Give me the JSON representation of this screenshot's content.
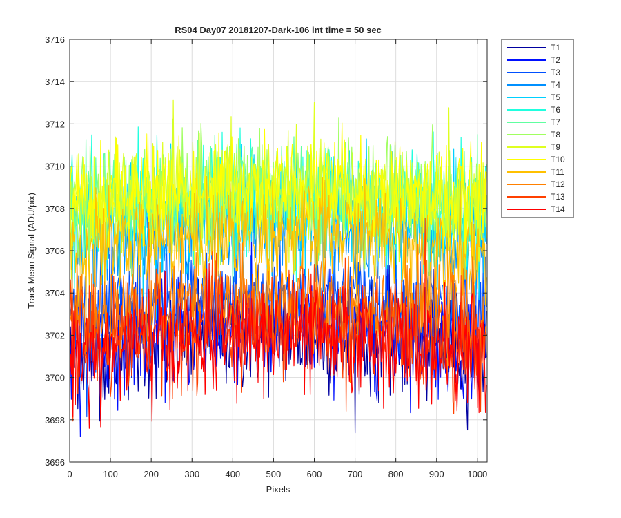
{
  "chart_data": {
    "type": "line",
    "title": "RS04 Day07 20181207-Dark-106 int time = 50 sec",
    "xlabel": "Pixels",
    "ylabel": "Track Mean Signal (ADU/pix)",
    "xlim": [
      0,
      1024
    ],
    "ylim": [
      3696,
      3716
    ],
    "xticks": [
      0,
      100,
      200,
      300,
      400,
      500,
      600,
      700,
      800,
      900,
      1000
    ],
    "yticks": [
      3696,
      3698,
      3700,
      3702,
      3704,
      3706,
      3708,
      3710,
      3712,
      3714,
      3716
    ],
    "grid": true,
    "legend_placement": "outside-right-top",
    "series": [
      {
        "name": "T1",
        "color": "#0000a0",
        "center": 3701.6,
        "spread": 1.3
      },
      {
        "name": "T2",
        "color": "#0010ff",
        "center": 3702.0,
        "spread": 1.3
      },
      {
        "name": "T3",
        "color": "#0050ff",
        "center": 3703.3,
        "spread": 1.2
      },
      {
        "name": "T4",
        "color": "#0090ff",
        "center": 3706.8,
        "spread": 1.2
      },
      {
        "name": "T5",
        "color": "#00d0ff",
        "center": 3707.5,
        "spread": 1.3
      },
      {
        "name": "T6",
        "color": "#20ffdf",
        "center": 3708.0,
        "spread": 1.3
      },
      {
        "name": "T7",
        "color": "#60ffa0",
        "center": 3708.2,
        "spread": 1.3
      },
      {
        "name": "T8",
        "color": "#a0ff60",
        "center": 3708.5,
        "spread": 1.3
      },
      {
        "name": "T9",
        "color": "#dfff20",
        "center": 3708.3,
        "spread": 1.3
      },
      {
        "name": "T10",
        "color": "#ffff00",
        "center": 3708.6,
        "spread": 1.2
      },
      {
        "name": "T11",
        "color": "#ffc000",
        "center": 3706.3,
        "spread": 1.2
      },
      {
        "name": "T12",
        "color": "#ff8000",
        "center": 3703.0,
        "spread": 1.3
      },
      {
        "name": "T13",
        "color": "#ff4000",
        "center": 3702.0,
        "spread": 1.3
      },
      {
        "name": "T14",
        "color": "#ff0000",
        "center": 3701.5,
        "spread": 1.3
      }
    ]
  }
}
